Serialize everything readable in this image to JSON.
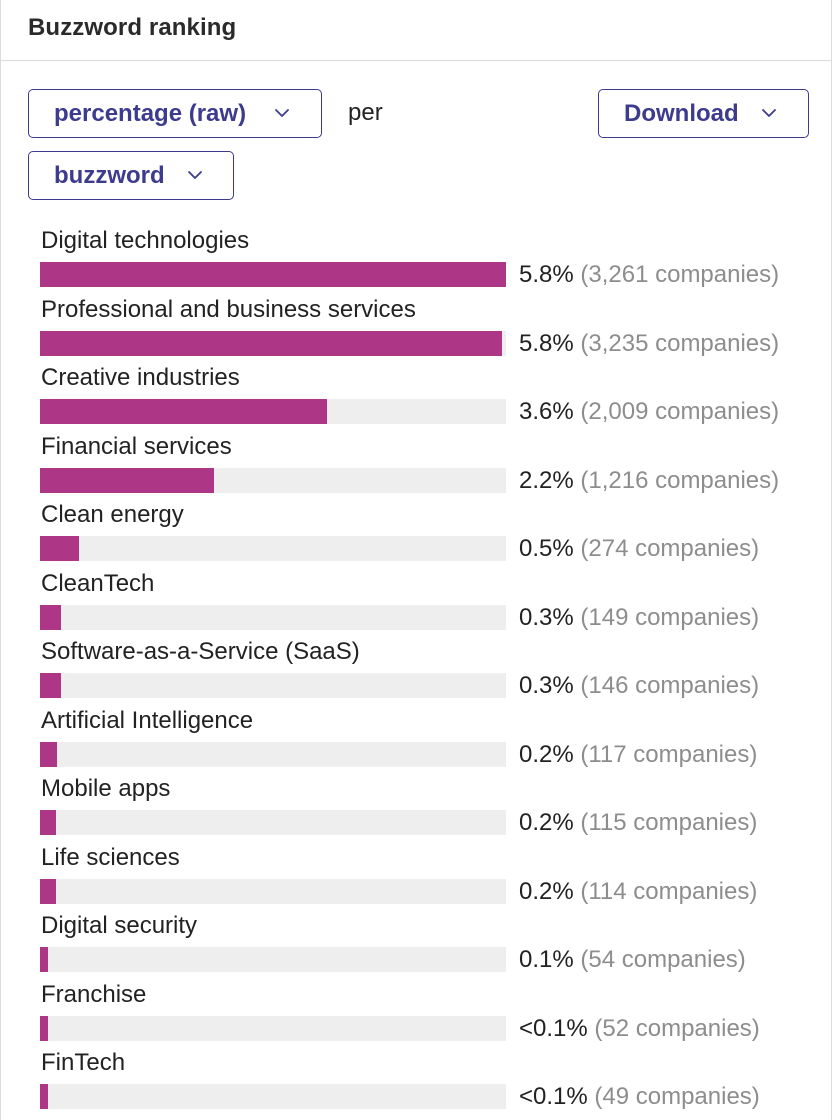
{
  "header": {
    "title": "Buzzword ranking"
  },
  "controls": {
    "metric_label": "percentage (raw)",
    "per_label": "per",
    "download_label": "Download",
    "group_label": "buzzword"
  },
  "colors": {
    "accent": "#3d3b8e",
    "bar": "#ad3786",
    "track": "#eeeeee",
    "count_text": "#8d8d8d"
  },
  "icons": {
    "dropdown": "chevron-down-icon"
  },
  "ranking": [
    {
      "name": "Digital technologies",
      "percent": "5.8%",
      "count": "(3,261 companies)",
      "fraction": 1.0
    },
    {
      "name": "Professional and business services",
      "percent": "5.8%",
      "count": "(3,235 companies)",
      "fraction": 0.992
    },
    {
      "name": "Creative industries",
      "percent": "3.6%",
      "count": "(2,009 companies)",
      "fraction": 0.616
    },
    {
      "name": "Financial services",
      "percent": "2.2%",
      "count": "(1,216 companies)",
      "fraction": 0.373
    },
    {
      "name": "Clean energy",
      "percent": "0.5%",
      "count": "(274 companies)",
      "fraction": 0.084
    },
    {
      "name": "CleanTech",
      "percent": "0.3%",
      "count": "(149 companies)",
      "fraction": 0.046
    },
    {
      "name": "Software-as-a-Service (SaaS)",
      "percent": "0.3%",
      "count": "(146 companies)",
      "fraction": 0.045
    },
    {
      "name": "Artificial Intelligence",
      "percent": "0.2%",
      "count": "(117 companies)",
      "fraction": 0.036
    },
    {
      "name": "Mobile apps",
      "percent": "0.2%",
      "count": "(115 companies)",
      "fraction": 0.035
    },
    {
      "name": "Life sciences",
      "percent": "0.2%",
      "count": "(114 companies)",
      "fraction": 0.035
    },
    {
      "name": "Digital security",
      "percent": "0.1%",
      "count": "(54 companies)",
      "fraction": 0.017
    },
    {
      "name": "Franchise",
      "percent": "<0.1%",
      "count": "(52 companies)",
      "fraction": 0.016
    },
    {
      "name": "FinTech",
      "percent": "<0.1%",
      "count": "(49 companies)",
      "fraction": 0.015
    }
  ]
}
